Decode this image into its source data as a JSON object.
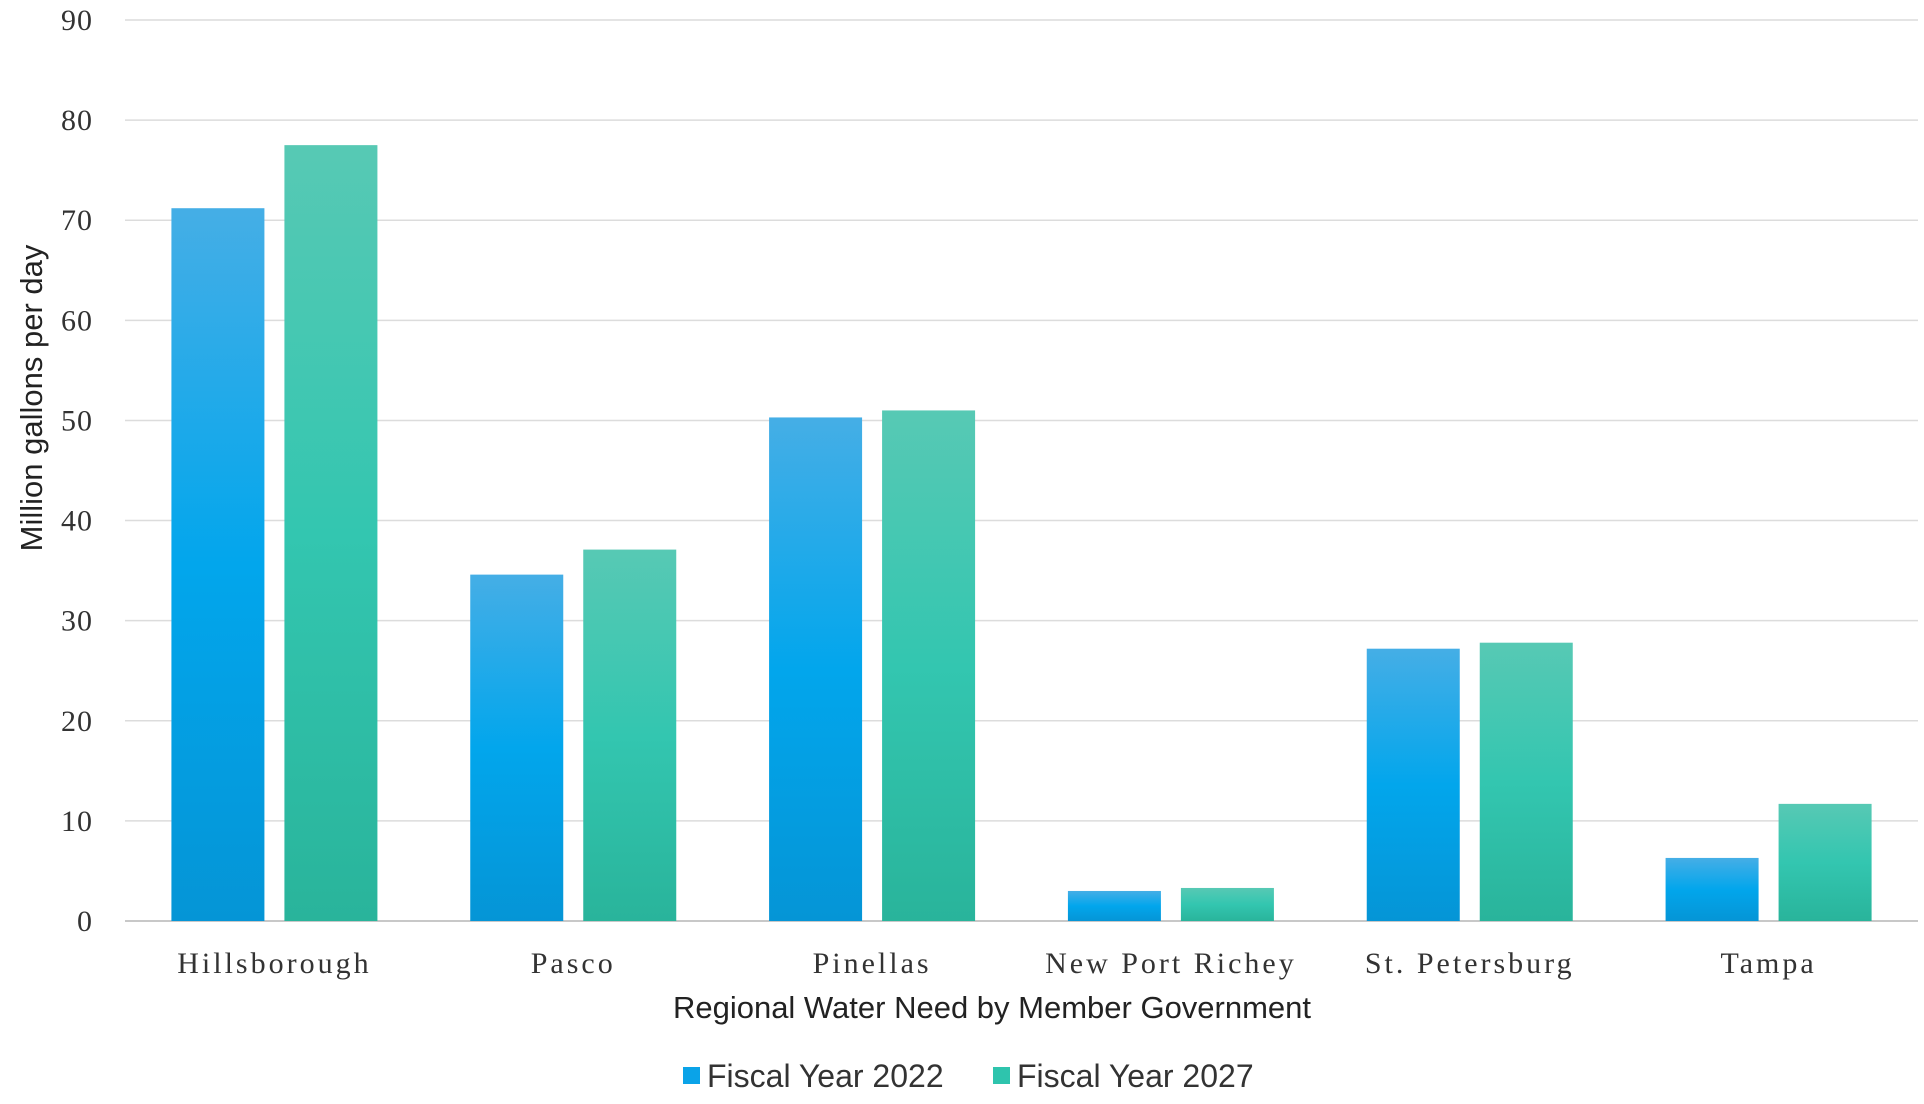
{
  "chart_data": {
    "type": "bar",
    "title": "",
    "xlabel": "Regional Water Need by Member Government",
    "ylabel": "Million gallons per day",
    "ylim": [
      0,
      90
    ],
    "yticks": [
      0,
      10,
      20,
      30,
      40,
      50,
      60,
      70,
      80,
      90
    ],
    "grid": true,
    "legend_position": "bottom",
    "categories": [
      "Hillsborough",
      "Pasco",
      "Pinellas",
      "New Port Richey",
      "St. Petersburg",
      "Tampa"
    ],
    "series": [
      {
        "name": "Fiscal Year 2022",
        "color": "#0aa3e8",
        "values": [
          71.2,
          34.6,
          50.3,
          3.0,
          27.2,
          6.3
        ]
      },
      {
        "name": "Fiscal Year 2027",
        "color": "#2ec4ad",
        "values": [
          77.5,
          37.1,
          51.0,
          3.3,
          27.8,
          11.7
        ]
      }
    ]
  }
}
